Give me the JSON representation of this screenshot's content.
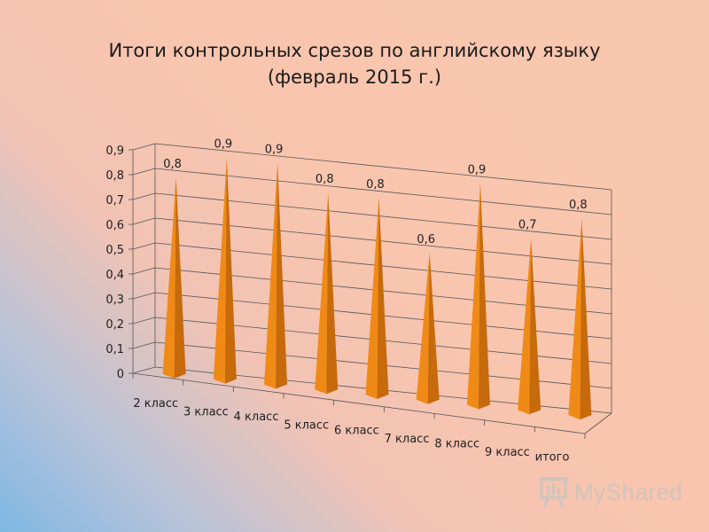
{
  "chart_data": {
    "type": "bar",
    "title": "Итоги контрольных срезов по английскому языку",
    "subtitle": "(февраль 2015 г.)",
    "categories": [
      "2 класс",
      "3 класс",
      "4 класс",
      "5 класс",
      "6 класс",
      "7 класс",
      "8 класс",
      "9 класс",
      "итого"
    ],
    "values": [
      0.8,
      0.9,
      0.9,
      0.8,
      0.8,
      0.6,
      0.9,
      0.7,
      0.8
    ],
    "data_labels": [
      "0,8",
      "0,9",
      "0,9",
      "0,8",
      "0,8",
      "0,6",
      "0,9",
      "0,7",
      "0,8"
    ],
    "yticks": [
      "0",
      "0,1",
      "0,2",
      "0,3",
      "0,4",
      "0,5",
      "0,6",
      "0,7",
      "0,8",
      "0,9"
    ],
    "ylim": [
      0,
      0.9
    ],
    "grid": true,
    "legend": "none",
    "bar_color": "#f08a16",
    "bar_shade_color": "#c66a0c"
  },
  "watermark": {
    "text": "MyShared",
    "icon": "presentation-board-icon"
  }
}
